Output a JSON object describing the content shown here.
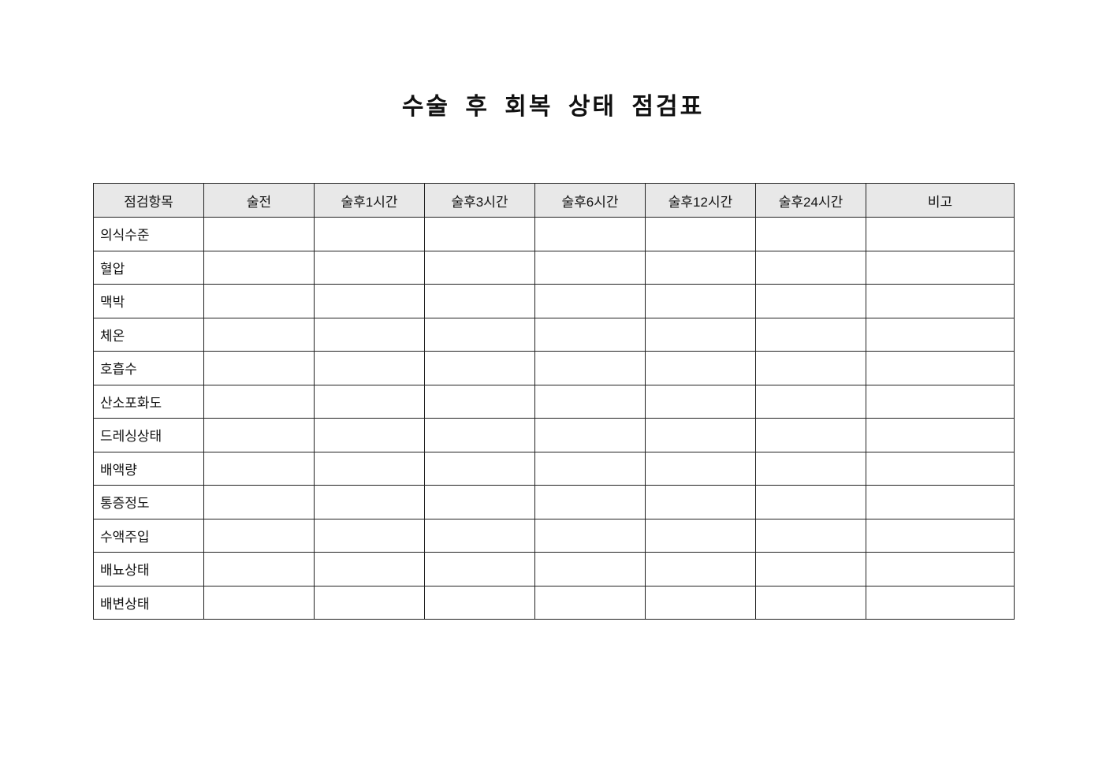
{
  "title": "수술 후 회복 상태 점검표",
  "table": {
    "headers": [
      "점검항목",
      "술전",
      "술후1시간",
      "술후3시간",
      "술후6시간",
      "술후12시간",
      "술후24시간",
      "비고"
    ],
    "rows": [
      "의식수준",
      "혈압",
      "맥박",
      "체온",
      "호흡수",
      "산소포화도",
      "드레싱상태",
      "배액량",
      "통증정도",
      "수액주입",
      "배뇨상태",
      "배변상태"
    ]
  }
}
